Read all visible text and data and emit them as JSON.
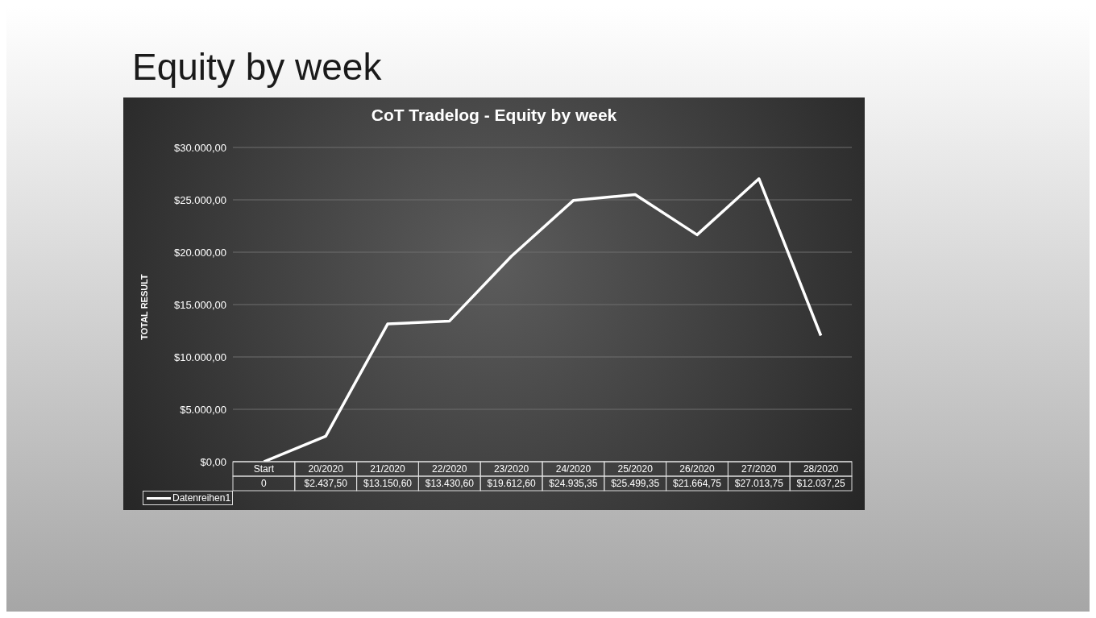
{
  "chart_data": {
    "type": "line",
    "title": "Equity by week",
    "subtitle": "CoT Tradelog - Equity by week",
    "ylabel": "TOTAL RESULT",
    "categories": [
      "Start",
      "20/2020",
      "21/2020",
      "22/2020",
      "23/2020",
      "24/2020",
      "25/2020",
      "26/2020",
      "27/2020",
      "28/2020"
    ],
    "series": [
      {
        "name": "Datenreihen1",
        "color": "#ffffff",
        "values": [
          0,
          2437.5,
          13150.6,
          13430.6,
          19612.6,
          24935.35,
          25499.35,
          21664.75,
          27013.75,
          12037.25
        ],
        "value_labels": [
          "0",
          "$2.437,50",
          "$13.150,60",
          "$13.430,60",
          "$19.612,60",
          "$24.935,35",
          "$25.499,35",
          "$21.664,75",
          "$27.013,75",
          "$12.037,25"
        ]
      }
    ],
    "ylim": [
      0,
      30000
    ],
    "yticks": [
      {
        "value": 0,
        "label": "$0,00"
      },
      {
        "value": 5000,
        "label": "$5.000,00"
      },
      {
        "value": 10000,
        "label": "$10.000,00"
      },
      {
        "value": 15000,
        "label": "$15.000,00"
      },
      {
        "value": 20000,
        "label": "$20.000,00"
      },
      {
        "value": 25000,
        "label": "$25.000,00"
      },
      {
        "value": 30000,
        "label": "$30.000,00"
      }
    ],
    "grid": "y",
    "legend": "bottom left"
  }
}
